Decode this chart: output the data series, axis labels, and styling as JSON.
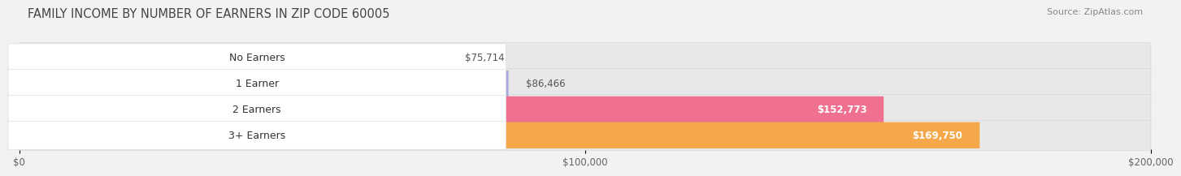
{
  "title": "FAMILY INCOME BY NUMBER OF EARNERS IN ZIP CODE 60005",
  "source": "Source: ZipAtlas.com",
  "categories": [
    "No Earners",
    "1 Earner",
    "2 Earners",
    "3+ Earners"
  ],
  "values": [
    75714,
    86466,
    152773,
    169750
  ],
  "bar_colors": [
    "#7DD4CE",
    "#AAAADD",
    "#F07090",
    "#F5A84A"
  ],
  "value_labels": [
    "$75,714",
    "$86,466",
    "$152,773",
    "$169,750"
  ],
  "value_inside": [
    false,
    false,
    true,
    true
  ],
  "xlim": [
    0,
    200000
  ],
  "xticks": [
    0,
    100000,
    200000
  ],
  "xtick_labels": [
    "$0",
    "$100,000",
    "$200,000"
  ],
  "background_color": "#F2F2F2",
  "bar_track_color": "#E8E8E8",
  "bar_area_bg": "#FFFFFF",
  "title_fontsize": 10.5,
  "source_fontsize": 8,
  "label_fontsize": 9,
  "value_fontsize": 8.5,
  "tick_fontsize": 8.5
}
